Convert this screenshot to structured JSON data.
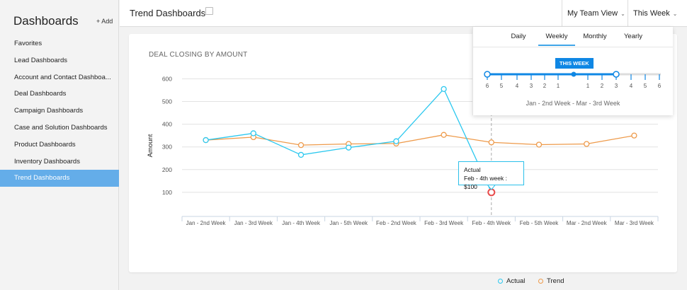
{
  "sidebar": {
    "title": "Dashboards",
    "add_label": "+ Add",
    "items": [
      "Favorites",
      "Lead Dashboards",
      "Account and Contact Dashboa...",
      "Deal Dashboards",
      "Campaign Dashboards",
      "Case and Solution Dashboards",
      "Product Dashboards",
      "Inventory Dashboards",
      "Trend Dashboards"
    ],
    "active_index": 8
  },
  "header": {
    "title": "Trend Dashboards",
    "view_select": "My Team View",
    "period_select": "This Week"
  },
  "period_panel": {
    "tabs": [
      "Daily",
      "Weekly",
      "Monthly",
      "Yearly"
    ],
    "active_tab": "Weekly",
    "badge": "THIS WEEK",
    "past_ticks": [
      "6",
      "5",
      "4",
      "3",
      "2",
      "1"
    ],
    "future_ticks": [
      "1",
      "2",
      "3",
      "4",
      "5",
      "6"
    ],
    "selected_from": "6 weeks back",
    "selected_to": "3 weeks ahead",
    "range_label": "Jan - 2nd Week - Mar - 3rd Week"
  },
  "tooltip": {
    "series": "Actual",
    "text": "Feb - 4th week : $100"
  },
  "colors": {
    "actual": "#2bc8ef",
    "trend": "#ee9a4a",
    "accent": "#0f87e4",
    "highlight": "#e84a4a"
  },
  "chart_data": {
    "type": "line",
    "title": "DEAL CLOSING BY AMOUNT",
    "xlabel": "",
    "ylabel": "Amount",
    "ylim": [
      0,
      600
    ],
    "yticks": [
      100,
      200,
      300,
      400,
      500,
      600
    ],
    "grid": true,
    "legend": "bottom",
    "categories": [
      "Jan - 2nd Week",
      "Jan - 3rd Week",
      "Jan - 4th Week",
      "Jan - 5th Week",
      "Feb - 2nd Week",
      "Feb - 3rd Week",
      "Feb - 4th Week",
      "Feb -  5th Week",
      "Mar - 2nd Week",
      "Mar - 3rd Week"
    ],
    "series": [
      {
        "name": "Actual",
        "values": [
          330,
          360,
          265,
          297,
          325,
          555,
          100,
          null,
          null,
          null
        ]
      },
      {
        "name": "Trend",
        "values": [
          330,
          343,
          308,
          313,
          315,
          353,
          320,
          310,
          313,
          350
        ]
      }
    ]
  }
}
